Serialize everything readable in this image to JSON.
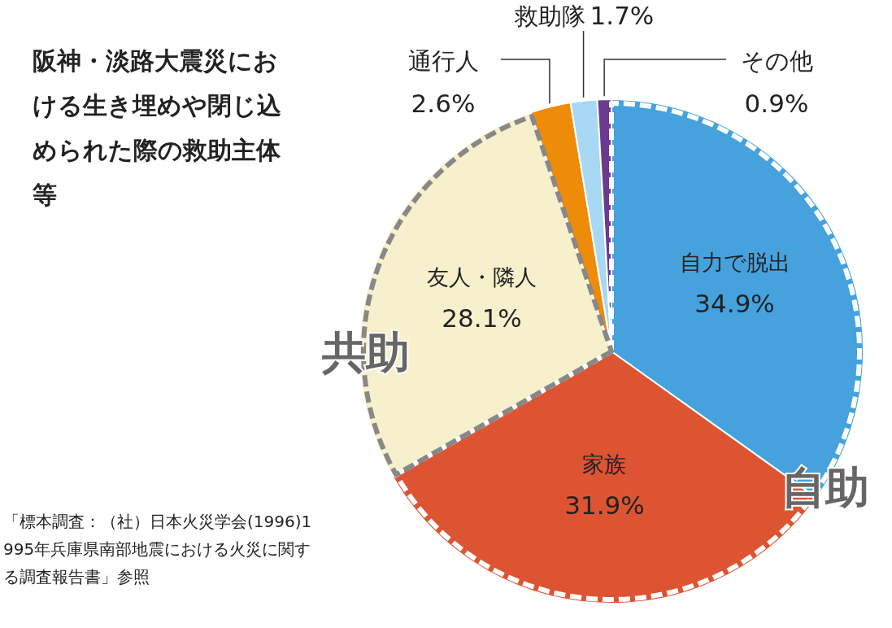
{
  "chart_data": {
    "type": "pie",
    "title": "阪神・淡路大震災における生き埋めや閉じ込められた際の救助主体等",
    "categories": [
      "自力で脱出",
      "家族",
      "友人・隣人",
      "通行人",
      "救助隊",
      "その他"
    ],
    "values": [
      34.9,
      31.9,
      28.1,
      2.6,
      1.7,
      0.9
    ],
    "value_labels": [
      "34.9%",
      "31.9%",
      "28.1%",
      "2.6%",
      "1.7%",
      "0.9%"
    ],
    "colors": [
      "#45a2dc",
      "#dd5433",
      "#f7f0cc",
      "#ee8c0a",
      "#a8d8f4",
      "#6a3a8f"
    ],
    "annotations": [
      "「標本調査：（社）日本火災学会(1996)1995年兵庫県南部地震における火災に関する調査報告書」参照",
      "共助",
      "自助"
    ]
  }
}
